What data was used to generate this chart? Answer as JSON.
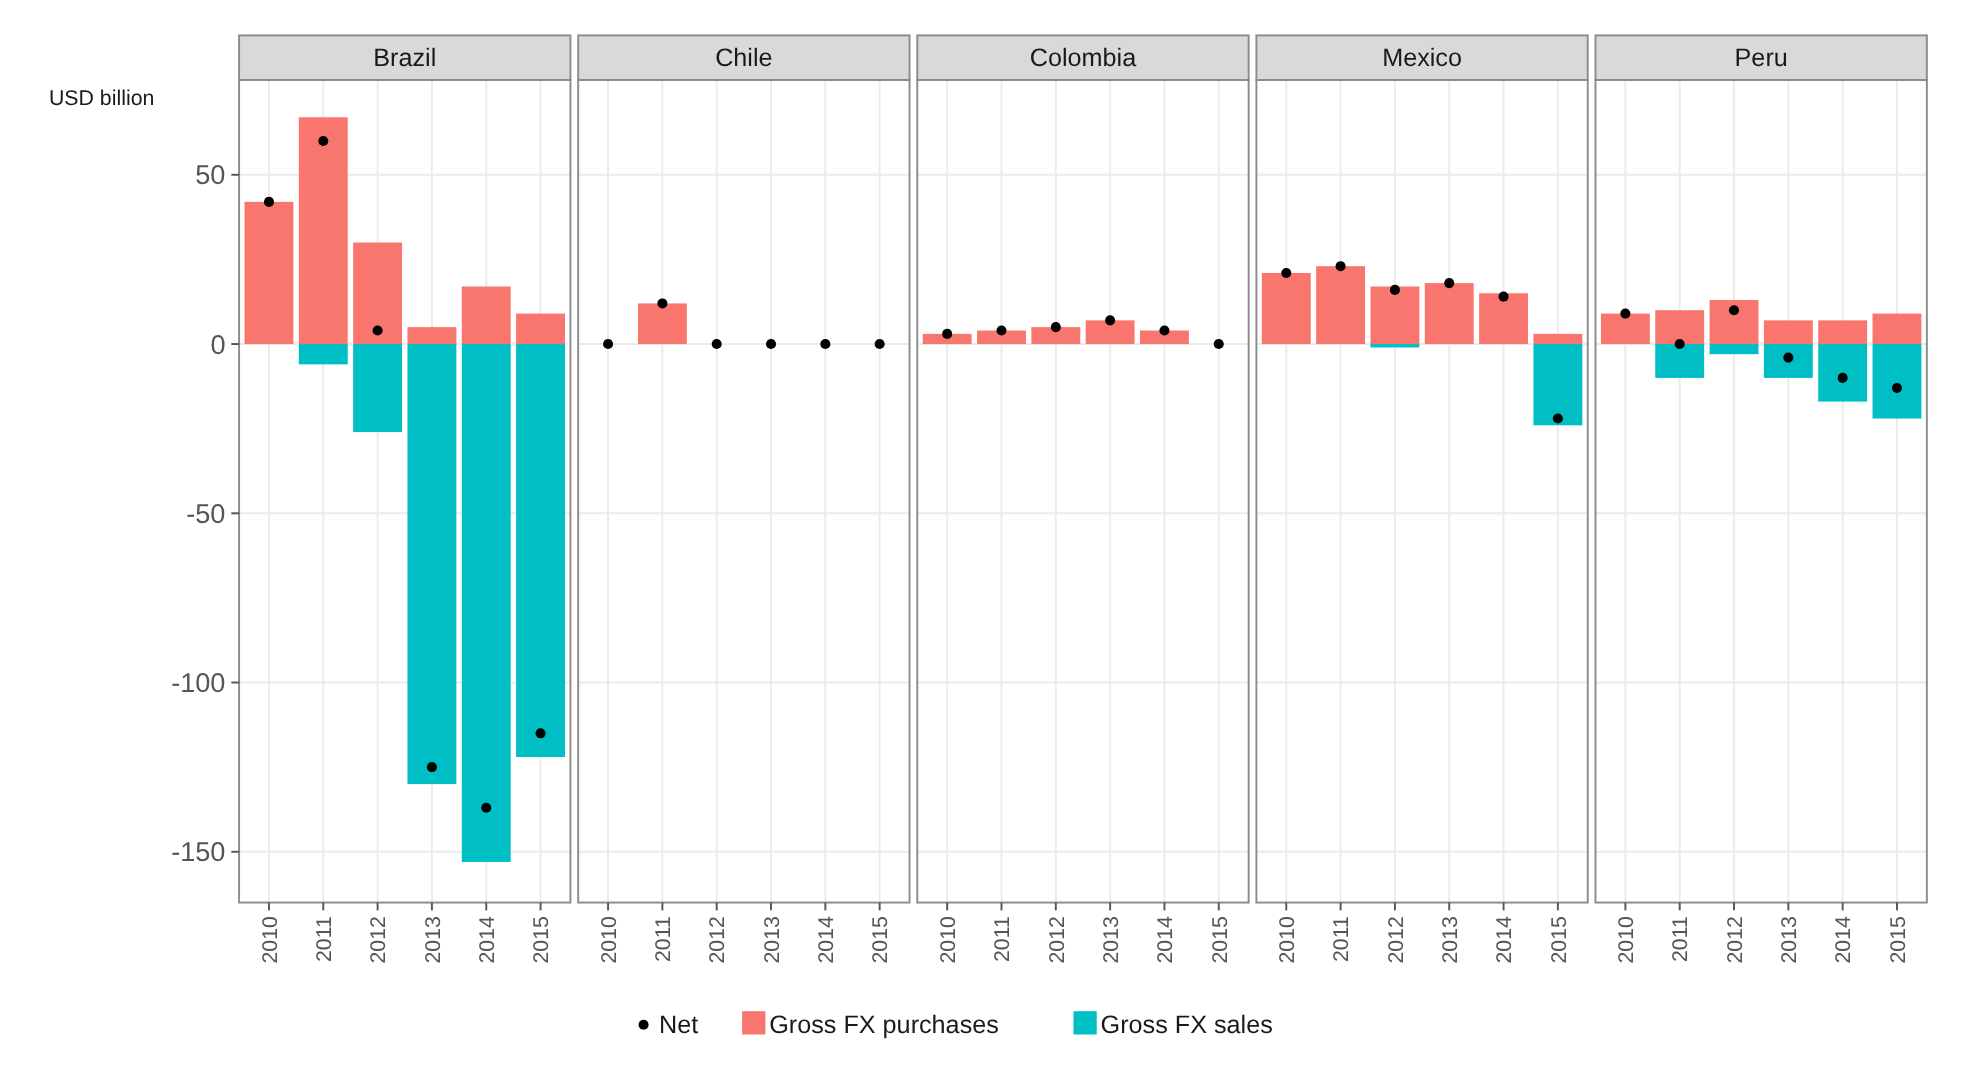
{
  "chart_data": [
    {
      "type": "bar",
      "stacked": true,
      "title": "Brazil",
      "ylabel": "USD billion",
      "categories": [
        "2010",
        "2011",
        "2012",
        "2013",
        "2014",
        "2015"
      ],
      "ylim": [
        -165,
        78
      ],
      "yticks": [
        -150,
        -100,
        -50,
        0,
        50
      ],
      "grid": true,
      "legend": "bottom",
      "series": [
        {
          "name": "Net",
          "type": "scatter",
          "color": "#000000",
          "values": [
            42,
            60,
            4,
            -125,
            -137,
            -115
          ]
        },
        {
          "name": "Gross FX purchases",
          "color": "#f8766d",
          "values": [
            42,
            67,
            30,
            5,
            17,
            9
          ]
        },
        {
          "name": "Gross FX sales",
          "color": "#00bfc4",
          "values": [
            0,
            -6,
            -26,
            -130,
            -153,
            -122
          ]
        }
      ]
    },
    {
      "type": "bar",
      "stacked": true,
      "title": "Chile",
      "categories": [
        "2010",
        "2011",
        "2012",
        "2013",
        "2014",
        "2015"
      ],
      "ylim": [
        -165,
        78
      ],
      "yticks": [
        -150,
        -100,
        -50,
        0,
        50
      ],
      "grid": true,
      "tick_labels": "x",
      "series": [
        {
          "type": "scatter",
          "color": "#000000",
          "values": [
            0,
            12,
            0,
            0,
            0,
            0
          ]
        },
        {
          "color": "#f8766d",
          "values": [
            0,
            12,
            0,
            0,
            0,
            0
          ]
        },
        {
          "color": "#00bfc4",
          "values": [
            0,
            0,
            0,
            0,
            0,
            0
          ]
        }
      ]
    },
    {
      "type": "bar",
      "stacked": true,
      "title": "Colombia",
      "categories": [
        "2010",
        "2011",
        "2012",
        "2013",
        "2014",
        "2015"
      ],
      "ylim": [
        -165,
        78
      ],
      "yticks": [
        -150,
        -100,
        -50,
        0,
        50
      ],
      "grid": true,
      "tick_labels": "x",
      "series": [
        {
          "type": "scatter",
          "color": "#000000",
          "values": [
            3,
            4,
            5,
            7,
            4,
            0
          ]
        },
        {
          "color": "#f8766d",
          "values": [
            3,
            4,
            5,
            7,
            4,
            0
          ]
        },
        {
          "color": "#00bfc4",
          "values": [
            0,
            0,
            0,
            0,
            0,
            0
          ]
        }
      ]
    },
    {
      "type": "bar",
      "stacked": true,
      "title": "Mexico",
      "categories": [
        "2010",
        "2011",
        "2012",
        "2013",
        "2014",
        "2015"
      ],
      "ylim": [
        -165,
        78
      ],
      "yticks": [
        -150,
        -100,
        -50,
        0,
        50
      ],
      "grid": true,
      "tick_labels": "x",
      "series": [
        {
          "type": "scatter",
          "color": "#000000",
          "values": [
            21,
            23,
            16,
            18,
            14,
            -22
          ]
        },
        {
          "color": "#f8766d",
          "values": [
            21,
            23,
            17,
            18,
            15,
            3
          ]
        },
        {
          "color": "#00bfc4",
          "values": [
            0,
            0,
            -1,
            0,
            0,
            -24
          ]
        }
      ]
    },
    {
      "type": "bar",
      "stacked": true,
      "title": "Peru",
      "categories": [
        "2010",
        "2011",
        "2012",
        "2013",
        "2014",
        "2015"
      ],
      "ylim": [
        -165,
        78
      ],
      "yticks": [
        -150,
        -100,
        -50,
        0,
        50
      ],
      "grid": true,
      "tick_labels": "x",
      "series": [
        {
          "type": "scatter",
          "color": "#000000",
          "values": [
            9,
            0,
            10,
            -4,
            -10,
            -13
          ]
        },
        {
          "color": "#f8766d",
          "values": [
            9,
            10,
            13,
            7,
            7,
            9
          ]
        },
        {
          "color": "#00bfc4",
          "values": [
            0,
            -10,
            -3,
            -10,
            -17,
            -22
          ]
        }
      ]
    }
  ]
}
